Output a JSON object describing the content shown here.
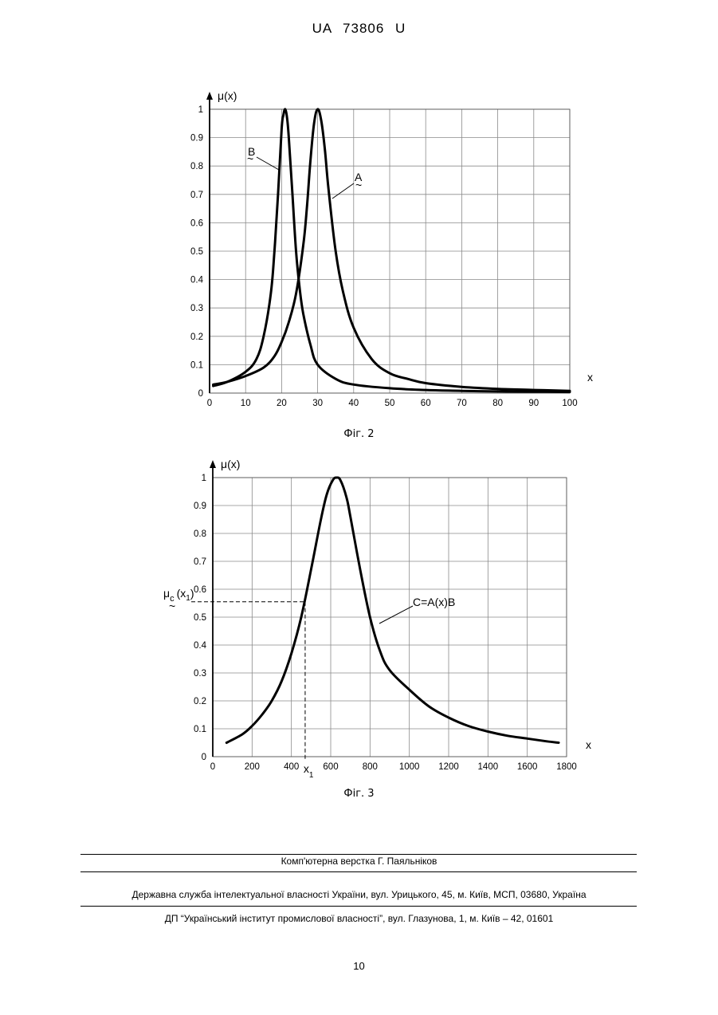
{
  "document": {
    "header": "UA 73806 U",
    "page_number": "10"
  },
  "footer": {
    "line1": "Комп'ютерна верстка Г. Паяльніков",
    "line2": "Державна служба інтелектуальної власності України, вул. Урицького, 45, м. Київ, МСП, 03680, Україна",
    "line3": "ДП “Український інститут промислової власності”, вул. Глазунова, 1, м. Київ – 42, 01601"
  },
  "chart_data": [
    {
      "type": "line",
      "caption": "Фіг. 2",
      "ylabel": "μ(x)",
      "xlabel": "x",
      "xlim": [
        0,
        100
      ],
      "ylim": [
        0,
        1
      ],
      "grid": true,
      "xticks": [
        0,
        10,
        20,
        30,
        40,
        50,
        60,
        70,
        80,
        90,
        100
      ],
      "yticks": [
        0,
        0.1,
        0.2,
        0.3,
        0.4,
        0.5,
        0.6,
        0.7,
        0.8,
        0.9,
        1
      ],
      "series": [
        {
          "name": "B",
          "x": [
            1,
            5,
            10,
            13,
            15,
            17,
            18,
            19,
            20,
            20.5,
            21,
            21.5,
            22,
            23,
            24,
            25,
            26,
            28,
            30,
            35,
            40,
            50,
            60,
            70,
            80,
            90,
            100
          ],
          "y": [
            0.025,
            0.04,
            0.075,
            0.12,
            0.2,
            0.35,
            0.5,
            0.7,
            0.93,
            0.98,
            1.0,
            0.97,
            0.9,
            0.7,
            0.5,
            0.37,
            0.28,
            0.17,
            0.1,
            0.05,
            0.03,
            0.017,
            0.011,
            0.008,
            0.006,
            0.005,
            0.004
          ]
        },
        {
          "name": "A",
          "x": [
            1,
            5,
            10,
            15,
            18,
            20,
            22,
            24,
            26,
            27,
            28,
            29,
            30,
            31,
            32,
            33,
            35,
            37,
            40,
            45,
            50,
            55,
            60,
            70,
            80,
            90,
            100
          ],
          "y": [
            0.03,
            0.04,
            0.06,
            0.09,
            0.13,
            0.18,
            0.25,
            0.35,
            0.52,
            0.65,
            0.82,
            0.95,
            1.0,
            0.96,
            0.86,
            0.72,
            0.5,
            0.36,
            0.23,
            0.12,
            0.07,
            0.05,
            0.035,
            0.022,
            0.015,
            0.011,
            0.008
          ]
        }
      ]
    },
    {
      "type": "line",
      "caption": "Фіг. 3",
      "ylabel": "μ(x)",
      "xlabel": "x",
      "xlim": [
        0,
        1800
      ],
      "ylim": [
        0,
        1
      ],
      "grid": true,
      "xticks": [
        0,
        200,
        400,
        600,
        800,
        1000,
        1200,
        1400,
        1600,
        1800
      ],
      "yticks": [
        0,
        0.1,
        0.2,
        0.3,
        0.4,
        0.5,
        0.6,
        0.7,
        0.8,
        0.9,
        1
      ],
      "series": [
        {
          "name": "C=A(x)B",
          "x": [
            70,
            150,
            200,
            250,
            300,
            350,
            400,
            450,
            500,
            550,
            580,
            610,
            630,
            650,
            680,
            700,
            750,
            800,
            850,
            900,
            1000,
            1100,
            1200,
            1300,
            1400,
            1500,
            1600,
            1700,
            1760
          ],
          "y": [
            0.05,
            0.08,
            0.11,
            0.15,
            0.2,
            0.27,
            0.37,
            0.5,
            0.67,
            0.85,
            0.94,
            0.99,
            1.0,
            0.99,
            0.93,
            0.86,
            0.67,
            0.5,
            0.38,
            0.31,
            0.24,
            0.18,
            0.14,
            0.11,
            0.09,
            0.075,
            0.065,
            0.055,
            0.05
          ]
        }
      ],
      "annotations": {
        "y_marker_label": "μc(x1)",
        "y_marker_sub": "c",
        "y_marker_arg": "(x",
        "y_marker_arg_sub": "1",
        "y_marker_close": ")",
        "y_marker_mu": "μ",
        "x_marker_label": "x",
        "x_marker_sub": "1",
        "marker_point": {
          "x": 470,
          "y": 0.555
        }
      }
    }
  ]
}
